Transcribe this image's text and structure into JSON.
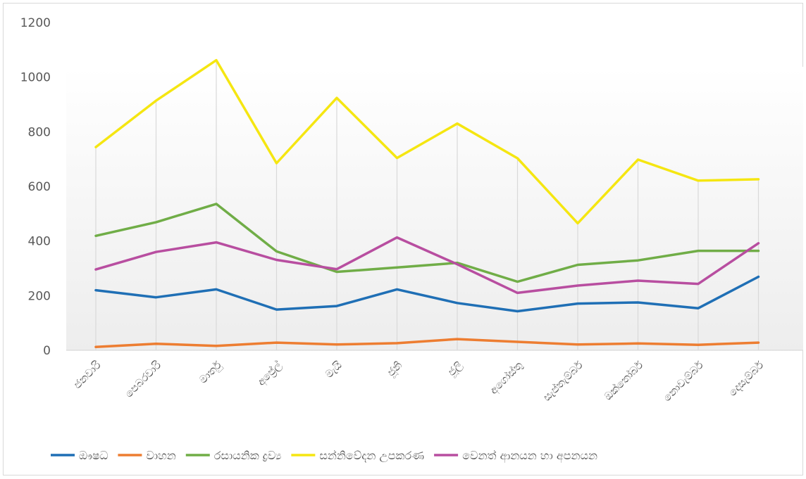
{
  "chart_data": {
    "type": "line",
    "title": "",
    "xlabel": "",
    "ylabel": "",
    "ylim": [
      0,
      1200
    ],
    "yticks": [
      0,
      200,
      400,
      600,
      800,
      1000,
      1200
    ],
    "grid": "vertical",
    "legend_position": "bottom",
    "categories": [
      "ජනවාරි",
      "පෙබරවාරි",
      "මාර්තු",
      "අප්‍රේල්",
      "මැයි",
      "ජූනි",
      "ජූලි",
      "අගෝස්තු",
      "සැප්තැම්බර්",
      "ඔක්තෝබර්",
      "නොවැම්බර්",
      "දෙසැම්බර්"
    ],
    "series": [
      {
        "name": "ඖෂධ",
        "color": "#1f6fb5",
        "values": [
          220,
          194,
          223,
          149,
          162,
          223,
          173,
          143,
          171,
          175,
          154,
          269
        ]
      },
      {
        "name": "වාහන",
        "color": "#ed7d31",
        "values": [
          12,
          24,
          16,
          28,
          21,
          26,
          41,
          31,
          21,
          25,
          20,
          28
        ]
      },
      {
        "name": "රසායනික ද්‍රව්‍ය",
        "color": "#70ad47",
        "values": [
          419,
          469,
          536,
          362,
          287,
          303,
          320,
          251,
          313,
          329,
          364,
          364
        ]
      },
      {
        "name": "සන්නිවේදන උපකරණ",
        "color": "#f5e611",
        "values": [
          744,
          914,
          1062,
          685,
          924,
          704,
          830,
          703,
          465,
          698,
          621,
          626
        ]
      },
      {
        "name": "වෙනත් ආනයන හා අපනයන",
        "color": "#b84ea0",
        "values": [
          296,
          360,
          395,
          331,
          297,
          413,
          315,
          210,
          237,
          255,
          243,
          392
        ]
      }
    ]
  }
}
